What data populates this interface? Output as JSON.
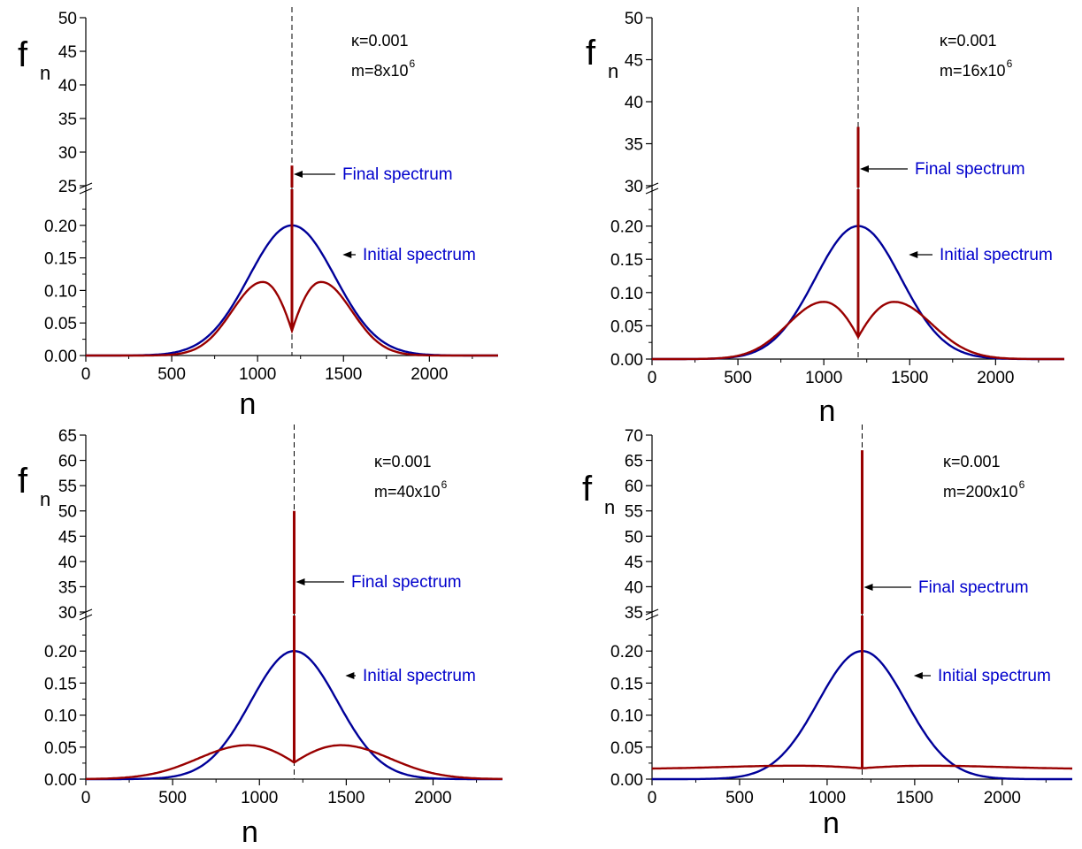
{
  "colors": {
    "initial_spectrum": "#000099",
    "final_spectrum": "#990000",
    "annotation_blue": "#0000cc",
    "axis": "#000000"
  },
  "chart_data": [
    {
      "type": "line",
      "panel": "top-left",
      "xlabel": "n",
      "ylabel_main": "f",
      "ylabel_sub": "n",
      "xlim": [
        0,
        2400
      ],
      "x_ticks": [
        0,
        500,
        1000,
        1500,
        2000
      ],
      "x_tick_labels": [
        "0",
        "500",
        "1000",
        "1500",
        "2000"
      ],
      "y_lower": {
        "ylim": [
          0,
          0.25
        ],
        "ticks": [
          0,
          0.05,
          0.1,
          0.15,
          0.2
        ],
        "tick_labels": [
          "0.00",
          "0.05",
          "0.10",
          "0.15",
          "0.20"
        ]
      },
      "y_upper": {
        "ylim": [
          25,
          50
        ],
        "ticks": [
          25,
          30,
          35,
          40,
          45,
          50
        ],
        "tick_labels": [
          "25",
          "30",
          "35",
          "40",
          "45",
          "50"
        ]
      },
      "params": {
        "kappa": "κ=0.001",
        "m_prefix": "m=8x10",
        "m_exp": "6"
      },
      "center": 1200,
      "series": [
        {
          "name": "Initial spectrum",
          "shape": "gaussian",
          "peak": 0.2,
          "sigma": 250
        },
        {
          "name": "Final spectrum",
          "shape": "split",
          "lobe_peak": 0.113,
          "lobe_centers": [
            1030,
            1370
          ],
          "dip": 0.038,
          "spike": 28
        }
      ],
      "annotations": [
        {
          "text": "Final spectrum",
          "target": "spike"
        },
        {
          "text": "Initial spectrum",
          "target": "initial"
        }
      ]
    },
    {
      "type": "line",
      "panel": "top-right",
      "xlabel": "n",
      "ylabel_main": "f",
      "ylabel_sub": "n",
      "xlim": [
        0,
        2400
      ],
      "x_ticks": [
        0,
        500,
        1000,
        1500,
        2000
      ],
      "x_tick_labels": [
        "0",
        "500",
        "1000",
        "1500",
        "2000"
      ],
      "y_lower": {
        "ylim": [
          0,
          0.25
        ],
        "ticks": [
          0,
          0.05,
          0.1,
          0.15,
          0.2
        ],
        "tick_labels": [
          "0.00",
          "0.05",
          "0.10",
          "0.15",
          "0.20"
        ]
      },
      "y_upper": {
        "ylim": [
          30,
          50
        ],
        "ticks": [
          30,
          35,
          40,
          45,
          50
        ],
        "tick_labels": [
          "30",
          "35",
          "40",
          "45",
          "50"
        ]
      },
      "params": {
        "kappa": "κ=0.001",
        "m_prefix": "m=16x10",
        "m_exp": "6"
      },
      "center": 1200,
      "series": [
        {
          "name": "Initial spectrum",
          "shape": "gaussian",
          "peak": 0.2,
          "sigma": 250
        },
        {
          "name": "Final spectrum",
          "shape": "split",
          "lobe_peak": 0.086,
          "lobe_centers": [
            1000,
            1410
          ],
          "dip": 0.033,
          "spike": 37
        }
      ],
      "annotations": [
        {
          "text": "Final spectrum",
          "target": "spike"
        },
        {
          "text": "Initial spectrum",
          "target": "initial"
        }
      ]
    },
    {
      "type": "line",
      "panel": "bottom-left",
      "xlabel": "n",
      "ylabel_main": "f",
      "ylabel_sub": "n",
      "xlim": [
        0,
        2400
      ],
      "x_ticks": [
        0,
        500,
        1000,
        1500,
        2000
      ],
      "x_tick_labels": [
        "0",
        "500",
        "1000",
        "1500",
        "2000"
      ],
      "y_lower": {
        "ylim": [
          0,
          0.25
        ],
        "ticks": [
          0,
          0.05,
          0.1,
          0.15,
          0.2
        ],
        "tick_labels": [
          "0.00",
          "0.05",
          "0.10",
          "0.15",
          "0.20"
        ]
      },
      "y_upper": {
        "ylim": [
          30,
          65
        ],
        "ticks": [
          30,
          35,
          40,
          45,
          50,
          55,
          60,
          65
        ],
        "tick_labels": [
          "30",
          "35",
          "40",
          "45",
          "50",
          "55",
          "60",
          "65"
        ]
      },
      "params": {
        "kappa": "κ=0.001",
        "m_prefix": "m=40x10",
        "m_exp": "6"
      },
      "center": 1200,
      "series": [
        {
          "name": "Initial spectrum",
          "shape": "gaussian",
          "peak": 0.2,
          "sigma": 250
        },
        {
          "name": "Final spectrum",
          "shape": "split",
          "lobe_peak": 0.053,
          "lobe_centers": [
            930,
            1470
          ],
          "dip": 0.026,
          "spike": 50
        }
      ],
      "annotations": [
        {
          "text": "Final spectrum",
          "target": "spike"
        },
        {
          "text": "Initial spectrum",
          "target": "initial"
        }
      ]
    },
    {
      "type": "line",
      "panel": "bottom-right",
      "xlabel": "n",
      "ylabel_main": "f",
      "ylabel_sub": "n",
      "xlim": [
        0,
        2400
      ],
      "x_ticks": [
        0,
        500,
        1000,
        1500,
        2000
      ],
      "x_tick_labels": [
        "0",
        "500",
        "1000",
        "1500",
        "2000"
      ],
      "y_lower": {
        "ylim": [
          0,
          0.25
        ],
        "ticks": [
          0,
          0.05,
          0.1,
          0.15,
          0.2
        ],
        "tick_labels": [
          "0.00",
          "0.05",
          "0.10",
          "0.15",
          "0.20"
        ]
      },
      "y_upper": {
        "ylim": [
          35,
          70
        ],
        "ticks": [
          35,
          40,
          45,
          50,
          55,
          60,
          65,
          70
        ],
        "tick_labels": [
          "35",
          "40",
          "45",
          "50",
          "55",
          "60",
          "65",
          "70"
        ]
      },
      "params": {
        "kappa": "κ=0.001",
        "m_prefix": "m=200x10",
        "m_exp": "6"
      },
      "center": 1200,
      "series": [
        {
          "name": "Initial spectrum",
          "shape": "gaussian",
          "peak": 0.2,
          "sigma": 250
        },
        {
          "name": "Final spectrum",
          "shape": "split",
          "lobe_peak": 0.021,
          "lobe_centers": [
            820,
            1580
          ],
          "dip": 0.017,
          "edge": 0.016,
          "spike": 67
        }
      ],
      "annotations": [
        {
          "text": "Final spectrum",
          "target": "spike"
        },
        {
          "text": "Initial spectrum",
          "target": "initial"
        }
      ]
    }
  ]
}
